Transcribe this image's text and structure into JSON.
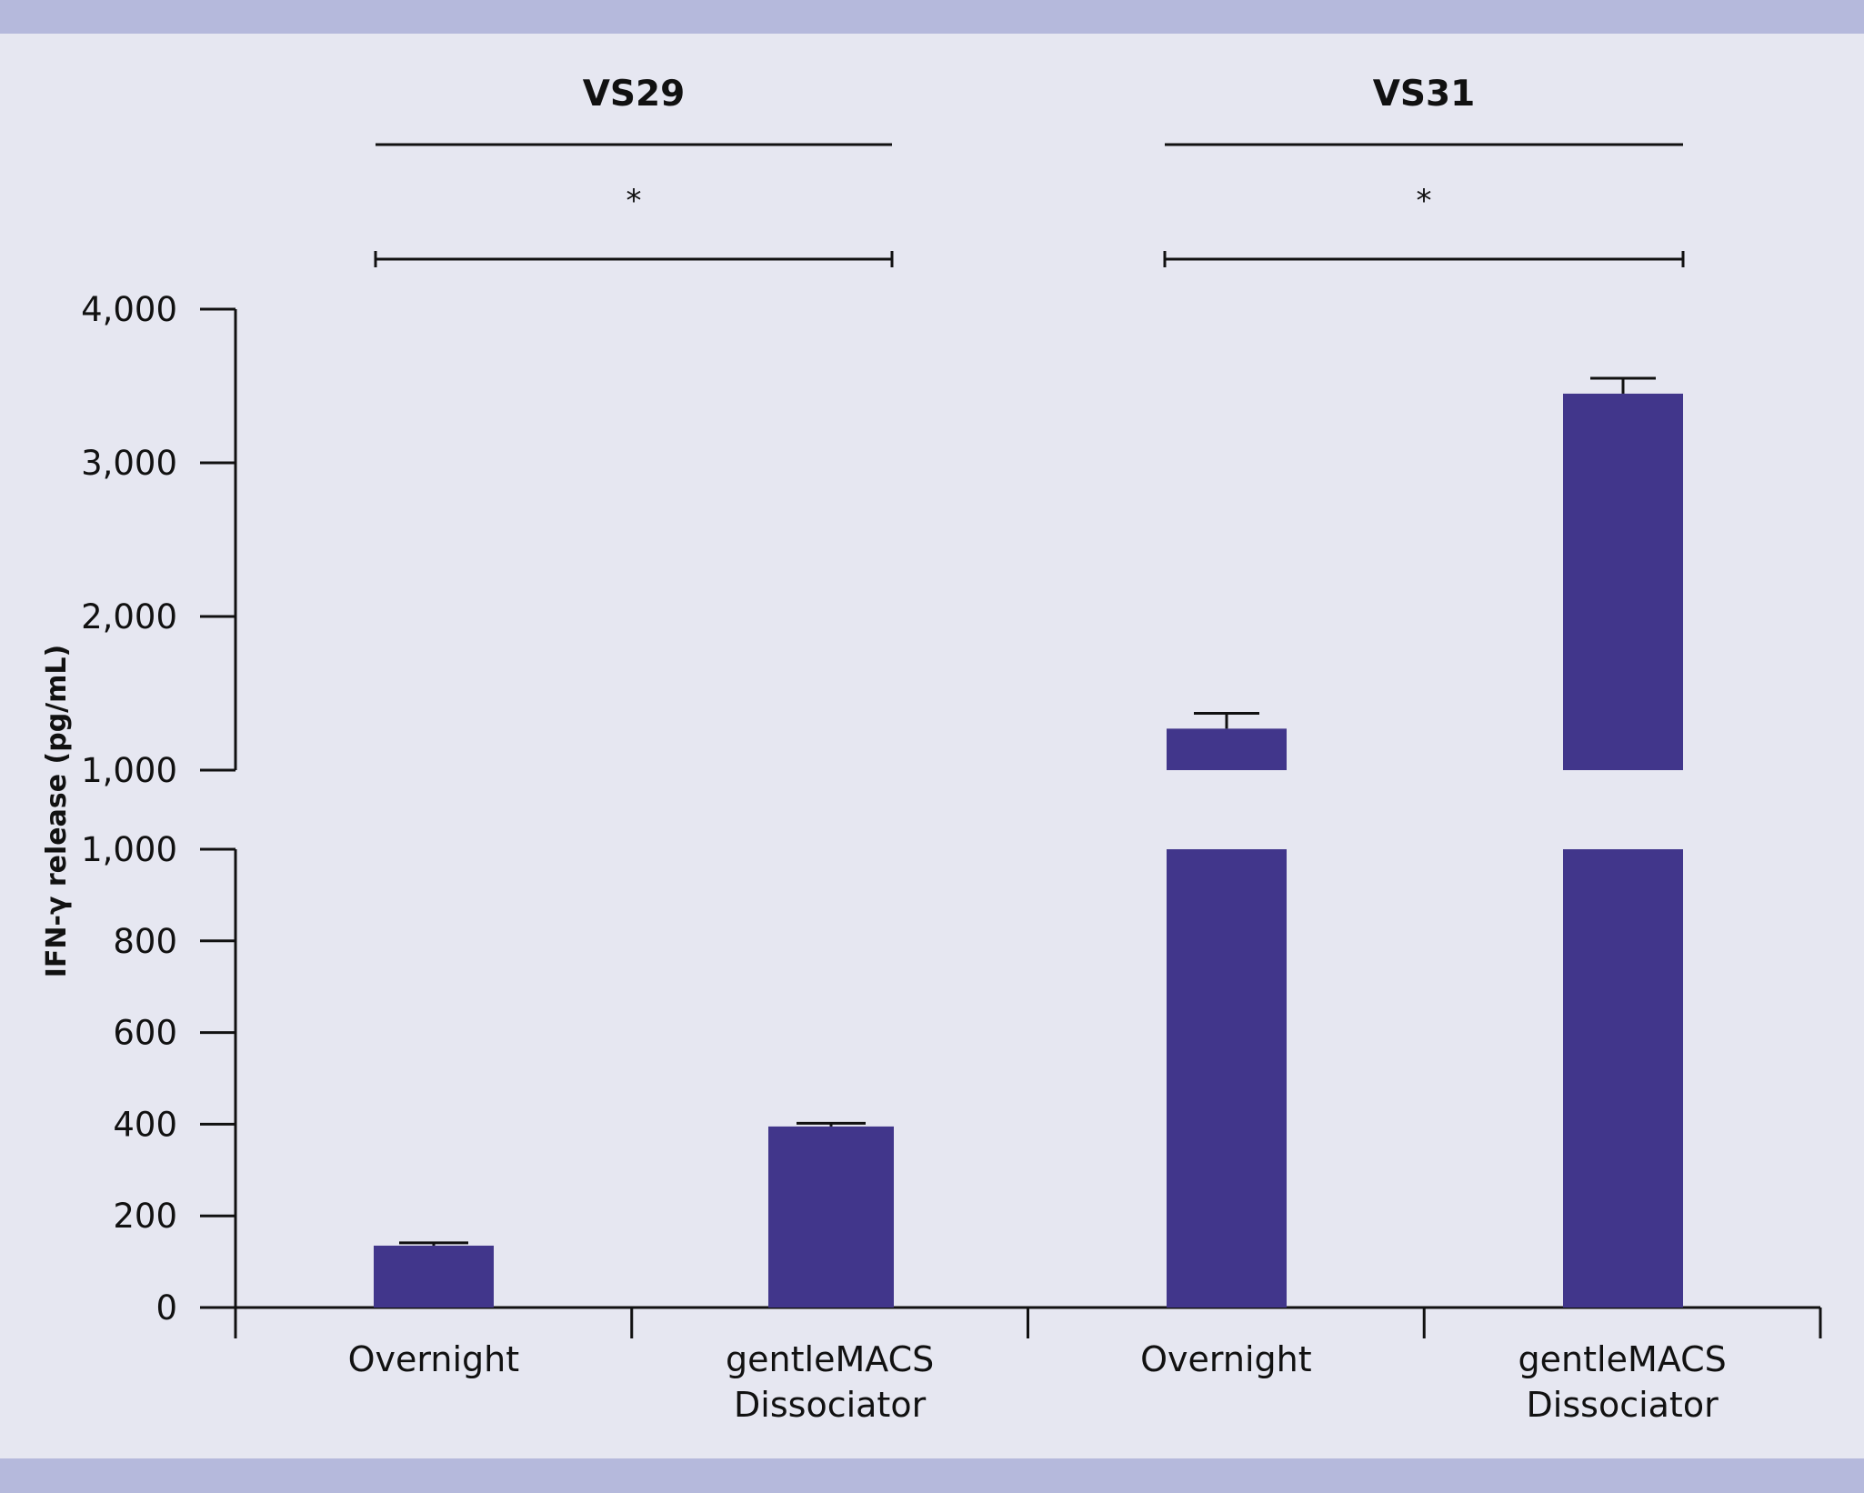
{
  "chart_data": {
    "type": "bar",
    "ylabel": "IFN-γ release (pg/mL)",
    "y_axis": {
      "broken": true,
      "lower_range": [
        0,
        1000
      ],
      "lower_ticks": [
        "0",
        "200",
        "400",
        "600",
        "800",
        "1,000"
      ],
      "upper_range": [
        1000,
        4000
      ],
      "upper_ticks": [
        "1,000",
        "2,000",
        "3,000",
        "4,000"
      ]
    },
    "groups": [
      {
        "name": "VS29",
        "significance": "*",
        "categories": [
          "Overnight",
          "gentleMACS Dissociator"
        ],
        "values": [
          135,
          395
        ],
        "errors": [
          6,
          7
        ]
      },
      {
        "name": "VS31",
        "significance": "*",
        "categories": [
          "Overnight",
          "gentleMACS Dissociator"
        ],
        "values": [
          1270,
          3450
        ],
        "errors": [
          100,
          100
        ]
      }
    ],
    "bar_color": "#41368b",
    "grid": false,
    "legend": "none"
  }
}
